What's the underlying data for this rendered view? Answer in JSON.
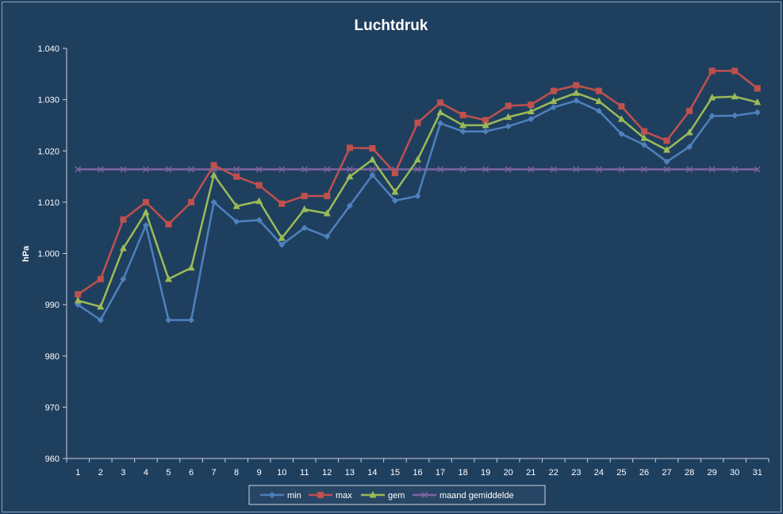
{
  "chart_data": {
    "type": "line",
    "title": "Luchtdruk",
    "xlabel": "",
    "ylabel": "hPa",
    "ylim": [
      960,
      1040
    ],
    "yticks": [
      "960",
      "970",
      "980",
      "990",
      "1.000",
      "1.010",
      "1.020",
      "1.030",
      "1.040"
    ],
    "ytick_values": [
      960,
      970,
      980,
      990,
      1000,
      1010,
      1020,
      1030,
      1040
    ],
    "categories": [
      "1",
      "2",
      "3",
      "4",
      "5",
      "6",
      "7",
      "8",
      "9",
      "10",
      "11",
      "12",
      "13",
      "14",
      "15",
      "16",
      "17",
      "18",
      "19",
      "20",
      "21",
      "22",
      "23",
      "24",
      "25",
      "26",
      "27",
      "28",
      "29",
      "30",
      "31"
    ],
    "grid": false,
    "legend_position": "bottom",
    "series": [
      {
        "name": "min",
        "color": "#4f81bd",
        "marker": "diamond",
        "values": [
          990.0,
          987.0,
          995.0,
          1005.5,
          987.0,
          987.0,
          1010.0,
          1006.2,
          1006.5,
          1001.7,
          1005.0,
          1003.3,
          1009.3,
          1015.3,
          1010.3,
          1011.2,
          1025.4,
          1023.8,
          1023.8,
          1024.8,
          1026.2,
          1028.5,
          1029.8,
          1027.8,
          1023.3,
          1021.2,
          1017.9,
          1020.8,
          1026.8,
          1026.9,
          1027.5
        ]
      },
      {
        "name": "max",
        "color": "#c0504d",
        "marker": "square",
        "values": [
          992.0,
          995.0,
          1006.6,
          1010.0,
          1005.7,
          1010.0,
          1017.2,
          1015.0,
          1013.3,
          1009.7,
          1011.2,
          1011.2,
          1020.6,
          1020.5,
          1015.7,
          1025.5,
          1029.4,
          1027.0,
          1026.0,
          1028.8,
          1029.0,
          1031.7,
          1032.8,
          1031.7,
          1028.7,
          1023.8,
          1022.0,
          1027.8,
          1035.6,
          1035.6,
          1032.2
        ]
      },
      {
        "name": "gem",
        "color": "#9bbb59",
        "marker": "triangle",
        "values": [
          990.8,
          989.6,
          1001.0,
          1008.0,
          995.0,
          997.2,
          1015.3,
          1009.2,
          1010.2,
          1003.0,
          1008.6,
          1007.8,
          1015.0,
          1018.3,
          1012.0,
          1018.3,
          1027.5,
          1025.0,
          1025.0,
          1026.6,
          1027.7,
          1029.7,
          1031.3,
          1029.7,
          1026.2,
          1022.5,
          1020.2,
          1023.6,
          1030.4,
          1030.6,
          1029.5
        ]
      },
      {
        "name": "maand gemiddelde",
        "color": "#8064a2",
        "marker": "x",
        "values": [
          1016.4,
          1016.4,
          1016.4,
          1016.4,
          1016.4,
          1016.4,
          1016.4,
          1016.4,
          1016.4,
          1016.4,
          1016.4,
          1016.4,
          1016.4,
          1016.4,
          1016.4,
          1016.4,
          1016.4,
          1016.4,
          1016.4,
          1016.4,
          1016.4,
          1016.4,
          1016.4,
          1016.4,
          1016.4,
          1016.4,
          1016.4,
          1016.4,
          1016.4,
          1016.4,
          1016.4
        ]
      }
    ]
  }
}
